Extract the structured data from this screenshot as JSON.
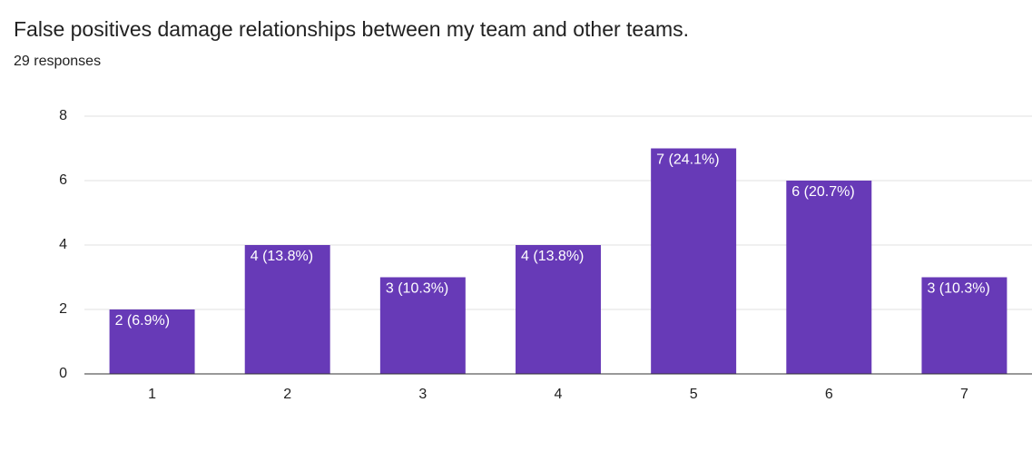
{
  "chart_data": {
    "type": "bar",
    "title": "False positives damage relationships between my team and other teams.",
    "subtitle": "29 responses",
    "categories": [
      "1",
      "2",
      "3",
      "4",
      "5",
      "6",
      "7"
    ],
    "values": [
      2,
      4,
      3,
      4,
      7,
      6,
      3
    ],
    "value_labels": [
      "2 (6.9%)",
      "4 (13.8%)",
      "3 (10.3%)",
      "4 (13.8%)",
      "7 (24.1%)",
      "6 (20.7%)",
      "3 (10.3%)"
    ],
    "color": "#673ab7",
    "ylim": [
      0,
      8
    ],
    "yticks": [
      0,
      2,
      4,
      6,
      8
    ],
    "grid": true
  }
}
